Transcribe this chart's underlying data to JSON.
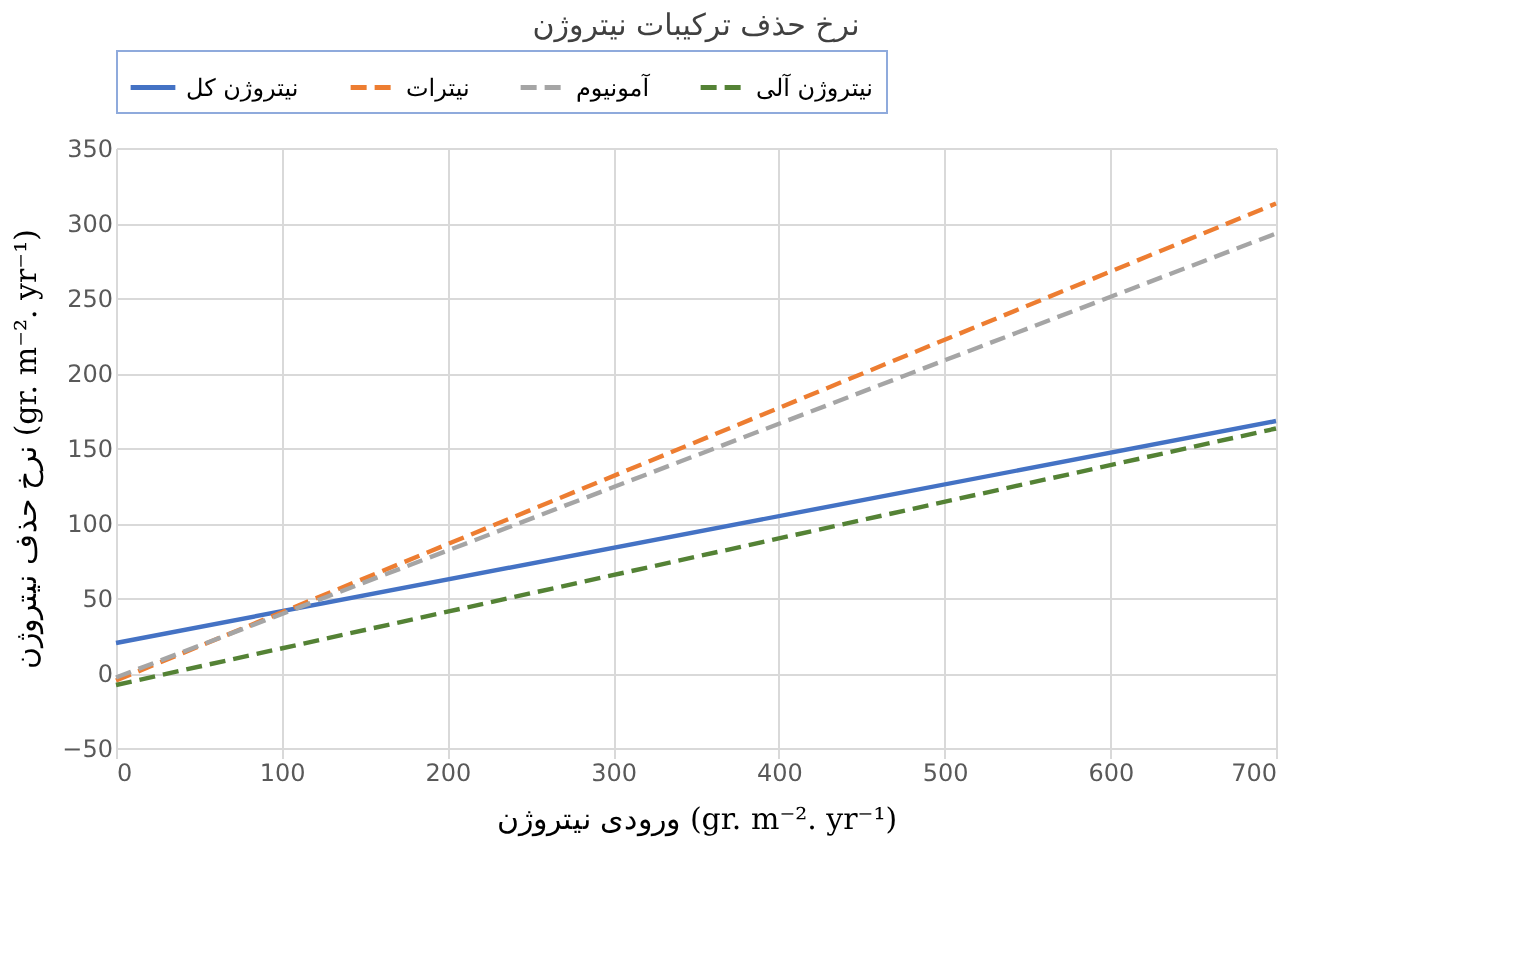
{
  "chart_data": {
    "type": "line",
    "title": "نرخ حذف ترکیبات نیتروژن",
    "xlabel": "ورودی نیتروژن (gr. m⁻². yr⁻¹)",
    "ylabel": "نرخ حذف نیتروژن (gr. m⁻². yr⁻¹)",
    "x": [
      0,
      700
    ],
    "series": [
      {
        "name": "نیتروژن کل",
        "color": "#4472c4",
        "values": [
          20,
          168
        ],
        "line_style": "solid"
      },
      {
        "name": "نیترات",
        "color": "#ed7d31",
        "values": [
          -5,
          313
        ],
        "line_style": "dashed"
      },
      {
        "name": "آمونیوم",
        "color": "#a5a5a5",
        "values": [
          -3,
          293
        ],
        "line_style": "dashed"
      },
      {
        "name": "نیتروژن آلی",
        "color": "#548235",
        "values": [
          -8,
          163
        ],
        "line_style": "dashed"
      }
    ],
    "xlim": [
      0,
      700
    ],
    "xticks": [
      0,
      100,
      200,
      300,
      400,
      500,
      600,
      700
    ],
    "ylim": [
      -50,
      350
    ],
    "yticks": [
      -50,
      0,
      50,
      100,
      150,
      200,
      250,
      300,
      350
    ],
    "grid": true,
    "legend": "top",
    "marker": "none"
  }
}
